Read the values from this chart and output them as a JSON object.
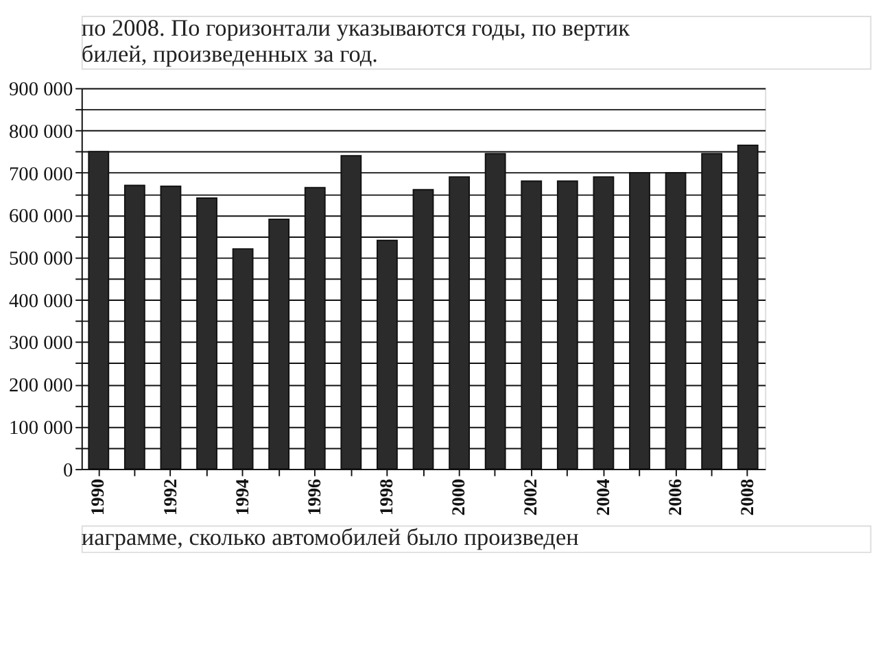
{
  "chart_data": {
    "type": "bar",
    "annotations": [
      "по 2008. По горизонтали указываются годы, по вертик",
      "билей, произведенных за год.",
      "иаграмме, сколько автомобилей было произведен"
    ],
    "categories": [
      "1990",
      null,
      "1992",
      null,
      "1994",
      null,
      "1996",
      null,
      "1998",
      null,
      "2000",
      null,
      "2002",
      null,
      "2004",
      null,
      "2006",
      null,
      "2008"
    ],
    "values": [
      750000,
      670000,
      668000,
      640000,
      520000,
      590000,
      665000,
      740000,
      540000,
      660000,
      690000,
      745000,
      680000,
      680000,
      690000,
      700000,
      700000,
      745000,
      765000
    ],
    "color": "#2b2b2b",
    "ylim": [
      0,
      900000
    ],
    "yticks": [
      0,
      {
        "value": 50000,
        "label": null
      },
      {
        "value": 100000,
        "label": "100 000"
      },
      {
        "value": 150000,
        "label": null
      },
      {
        "value": 200000,
        "label": "200 000"
      },
      {
        "value": 250000,
        "label": null
      },
      {
        "value": 300000,
        "label": "300 000"
      },
      {
        "value": 350000,
        "label": null
      },
      {
        "value": 400000,
        "label": "400 000"
      },
      {
        "value": 450000,
        "label": null
      },
      {
        "value": 500000,
        "label": "500 000"
      },
      {
        "value": 550000,
        "label": null
      },
      {
        "value": 600000,
        "label": "600 000"
      },
      {
        "value": 650000,
        "label": null
      },
      {
        "value": 700000,
        "label": "700 000"
      },
      {
        "value": 750000,
        "label": null
      },
      {
        "value": 800000,
        "label": "800 000"
      },
      {
        "value": 850000,
        "label": null
      },
      {
        "value": 900000,
        "label": "900 000"
      }
    ],
    "grid": "y"
  }
}
